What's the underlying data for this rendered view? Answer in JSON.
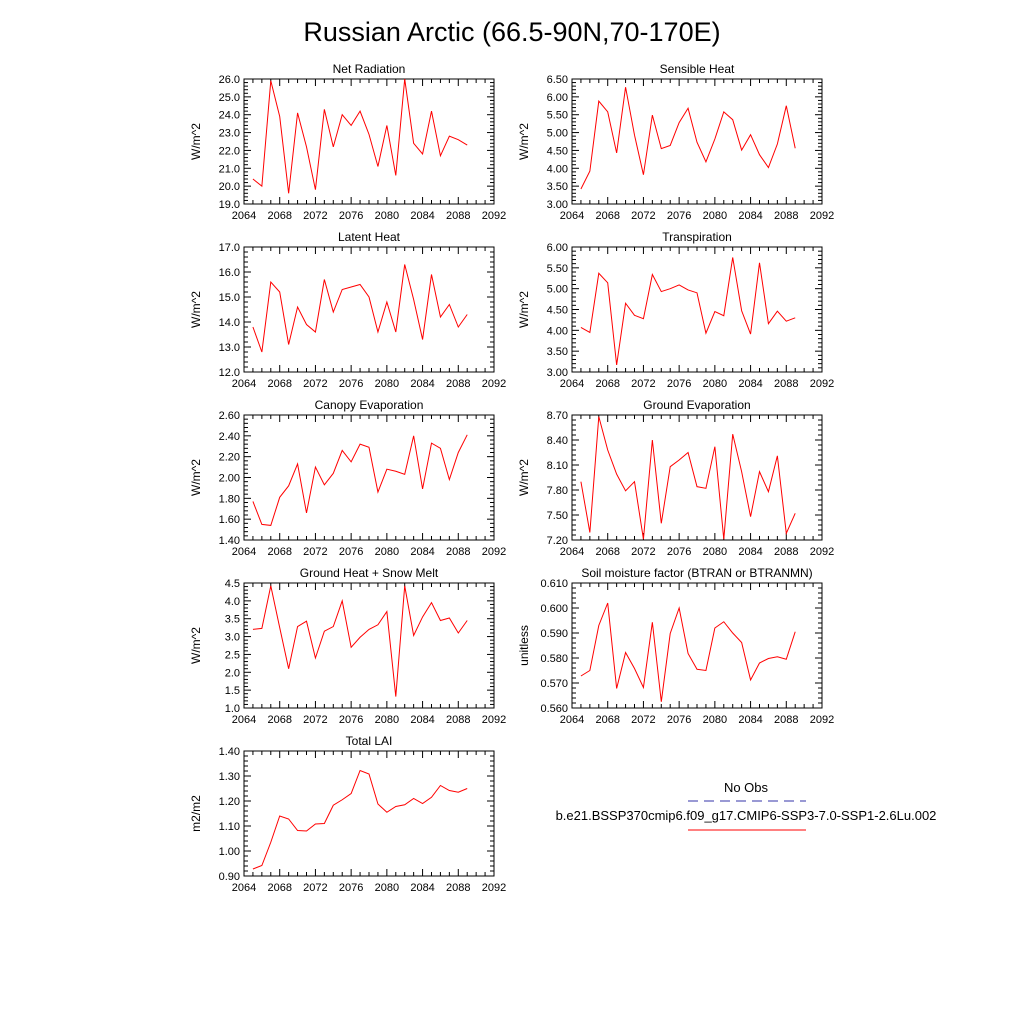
{
  "figure": {
    "title": "Russian Arctic (66.5-90N,70-170E)",
    "legend": {
      "obs_label": "No Obs",
      "obs_color": "#3333aa",
      "model_label": "b.e21.BSSP370cmip6.f09_g17.CMIP6-SSP3-7.0-SSP1-2.6Lu.002",
      "model_color": "#ff0000"
    },
    "line_color": "#ff0000"
  },
  "chart_data": [
    {
      "type": "line",
      "title": "Net Radiation",
      "ylabel": "W/m^2",
      "xlim": [
        2064,
        2092
      ],
      "ylim": [
        19.0,
        26.0
      ],
      "xticks": [
        "2064",
        "2068",
        "2072",
        "2076",
        "2080",
        "2084",
        "2088",
        "2092"
      ],
      "yticks": [
        "19.0",
        "20.0",
        "21.0",
        "22.0",
        "23.0",
        "24.0",
        "25.0",
        "26.0"
      ],
      "series": [
        {
          "x": [
            2065,
            2066,
            2067,
            2068,
            2069,
            2070,
            2071,
            2072,
            2073,
            2074,
            2075,
            2076,
            2077,
            2078,
            2079,
            2080,
            2081,
            2082,
            2083,
            2084,
            2085,
            2086,
            2087,
            2088,
            2089
          ],
          "values": [
            20.4,
            20.0,
            25.9,
            23.9,
            19.6,
            24.1,
            22.2,
            19.8,
            24.3,
            22.2,
            24.0,
            23.4,
            24.2,
            22.9,
            21.1,
            23.4,
            20.6,
            26.0,
            22.4,
            21.8,
            24.2,
            21.7,
            22.8,
            22.6,
            22.3
          ]
        }
      ]
    },
    {
      "type": "line",
      "title": "Sensible Heat",
      "ylabel": "W/m^2",
      "xlim": [
        2064,
        2092
      ],
      "ylim": [
        3.0,
        6.5
      ],
      "xticks": [
        "2064",
        "2068",
        "2072",
        "2076",
        "2080",
        "2084",
        "2088",
        "2092"
      ],
      "yticks": [
        "3.00",
        "3.50",
        "4.00",
        "4.50",
        "5.00",
        "5.50",
        "6.00",
        "6.50"
      ],
      "series": [
        {
          "x": [
            2065,
            2066,
            2067,
            2068,
            2069,
            2070,
            2071,
            2072,
            2073,
            2074,
            2075,
            2076,
            2077,
            2078,
            2079,
            2080,
            2081,
            2082,
            2083,
            2084,
            2085,
            2086,
            2087,
            2088,
            2089
          ],
          "values": [
            3.42,
            3.92,
            5.88,
            5.58,
            4.43,
            6.27,
            4.93,
            3.82,
            5.49,
            4.55,
            4.64,
            5.28,
            5.68,
            4.73,
            4.18,
            4.82,
            5.58,
            5.36,
            4.51,
            4.94,
            4.38,
            4.02,
            4.68,
            5.75,
            4.56
          ]
        }
      ]
    },
    {
      "type": "line",
      "title": "Latent Heat",
      "ylabel": "W/m^2",
      "xlim": [
        2064,
        2092
      ],
      "ylim": [
        12.0,
        17.0
      ],
      "xticks": [
        "2064",
        "2068",
        "2072",
        "2076",
        "2080",
        "2084",
        "2088",
        "2092"
      ],
      "yticks": [
        "12.0",
        "13.0",
        "14.0",
        "15.0",
        "16.0",
        "17.0"
      ],
      "series": [
        {
          "x": [
            2065,
            2066,
            2067,
            2068,
            2069,
            2070,
            2071,
            2072,
            2073,
            2074,
            2075,
            2076,
            2077,
            2078,
            2079,
            2080,
            2081,
            2082,
            2083,
            2084,
            2085,
            2086,
            2087,
            2088,
            2089
          ],
          "values": [
            13.8,
            12.8,
            15.6,
            15.2,
            13.1,
            14.6,
            13.9,
            13.6,
            15.7,
            14.4,
            15.3,
            15.4,
            15.5,
            15.0,
            13.6,
            14.8,
            13.6,
            16.3,
            14.9,
            13.3,
            15.9,
            14.2,
            14.7,
            13.8,
            14.3
          ]
        }
      ]
    },
    {
      "type": "line",
      "title": "Transpiration",
      "ylabel": "W/m^2",
      "xlim": [
        2064,
        2092
      ],
      "ylim": [
        3.0,
        6.0
      ],
      "xticks": [
        "2064",
        "2068",
        "2072",
        "2076",
        "2080",
        "2084",
        "2088",
        "2092"
      ],
      "yticks": [
        "3.00",
        "3.50",
        "4.00",
        "4.50",
        "5.00",
        "5.50",
        "6.00"
      ],
      "series": [
        {
          "x": [
            2065,
            2066,
            2067,
            2068,
            2069,
            2070,
            2071,
            2072,
            2073,
            2074,
            2075,
            2076,
            2077,
            2078,
            2079,
            2080,
            2081,
            2082,
            2083,
            2084,
            2085,
            2086,
            2087,
            2088,
            2089
          ],
          "values": [
            4.07,
            3.95,
            5.37,
            5.14,
            3.17,
            4.65,
            4.36,
            4.28,
            5.34,
            4.93,
            5.0,
            5.09,
            4.97,
            4.9,
            3.93,
            4.45,
            4.35,
            5.75,
            4.47,
            3.91,
            5.62,
            4.16,
            4.46,
            4.22,
            4.3
          ]
        }
      ]
    },
    {
      "type": "line",
      "title": "Canopy Evaporation",
      "ylabel": "W/m^2",
      "xlim": [
        2064,
        2092
      ],
      "ylim": [
        1.4,
        2.6
      ],
      "xticks": [
        "2064",
        "2068",
        "2072",
        "2076",
        "2080",
        "2084",
        "2088",
        "2092"
      ],
      "yticks": [
        "1.40",
        "1.60",
        "1.80",
        "2.00",
        "2.20",
        "2.40",
        "2.60"
      ],
      "series": [
        {
          "x": [
            2065,
            2066,
            2067,
            2068,
            2069,
            2070,
            2071,
            2072,
            2073,
            2074,
            2075,
            2076,
            2077,
            2078,
            2079,
            2080,
            2081,
            2082,
            2083,
            2084,
            2085,
            2086,
            2087,
            2088,
            2089
          ],
          "values": [
            1.77,
            1.55,
            1.54,
            1.81,
            1.92,
            2.13,
            1.66,
            2.1,
            1.93,
            2.04,
            2.26,
            2.15,
            2.32,
            2.29,
            1.86,
            2.08,
            2.06,
            2.03,
            2.4,
            1.89,
            2.33,
            2.28,
            1.98,
            2.24,
            2.41
          ]
        }
      ]
    },
    {
      "type": "line",
      "title": "Ground Evaporation",
      "ylabel": "W/m^2",
      "xlim": [
        2064,
        2092
      ],
      "ylim": [
        7.2,
        8.7
      ],
      "xticks": [
        "2064",
        "2068",
        "2072",
        "2076",
        "2080",
        "2084",
        "2088",
        "2092"
      ],
      "yticks": [
        "7.20",
        "7.50",
        "7.80",
        "8.10",
        "8.40",
        "8.70"
      ],
      "series": [
        {
          "x": [
            2065,
            2066,
            2067,
            2068,
            2069,
            2070,
            2071,
            2072,
            2073,
            2074,
            2075,
            2076,
            2077,
            2078,
            2079,
            2080,
            2081,
            2082,
            2083,
            2084,
            2085,
            2086,
            2087,
            2088,
            2089
          ],
          "values": [
            7.9,
            7.29,
            8.68,
            8.28,
            7.99,
            7.79,
            7.9,
            7.21,
            8.4,
            7.4,
            8.08,
            8.16,
            8.25,
            7.84,
            7.82,
            8.32,
            7.21,
            8.47,
            8.02,
            7.48,
            8.02,
            7.78,
            8.21,
            7.28,
            7.52
          ]
        }
      ]
    },
    {
      "type": "line",
      "title": "Ground Heat + Snow Melt",
      "ylabel": "W/m^2",
      "xlim": [
        2064,
        2092
      ],
      "ylim": [
        1.0,
        4.5
      ],
      "xticks": [
        "2064",
        "2068",
        "2072",
        "2076",
        "2080",
        "2084",
        "2088",
        "2092"
      ],
      "yticks": [
        "1.0",
        "1.5",
        "2.0",
        "2.5",
        "3.0",
        "3.5",
        "4.0",
        "4.5"
      ],
      "series": [
        {
          "x": [
            2065,
            2066,
            2067,
            2068,
            2069,
            2070,
            2071,
            2072,
            2073,
            2074,
            2075,
            2076,
            2077,
            2078,
            2079,
            2080,
            2081,
            2082,
            2083,
            2084,
            2085,
            2086,
            2087,
            2088,
            2089
          ],
          "values": [
            3.2,
            3.23,
            4.42,
            3.25,
            2.1,
            3.28,
            3.43,
            2.4,
            3.15,
            3.28,
            4.0,
            2.7,
            2.98,
            3.2,
            3.33,
            3.7,
            1.32,
            4.42,
            3.03,
            3.55,
            3.95,
            3.45,
            3.52,
            3.1,
            3.45
          ]
        }
      ]
    },
    {
      "type": "line",
      "title": "Soil moisture factor (BTRAN or BTRANMN)",
      "ylabel": "unitless",
      "xlim": [
        2064,
        2092
      ],
      "ylim": [
        0.56,
        0.61
      ],
      "xticks": [
        "2064",
        "2068",
        "2072",
        "2076",
        "2080",
        "2084",
        "2088",
        "2092"
      ],
      "yticks": [
        "0.560",
        "0.570",
        "0.580",
        "0.590",
        "0.600",
        "0.610"
      ],
      "series": [
        {
          "x": [
            2065,
            2066,
            2067,
            2068,
            2069,
            2070,
            2071,
            2072,
            2073,
            2074,
            2075,
            2076,
            2077,
            2078,
            2079,
            2080,
            2081,
            2082,
            2083,
            2084,
            2085,
            2086,
            2087,
            2088,
            2089
          ],
          "values": [
            0.5728,
            0.575,
            0.593,
            0.602,
            0.5678,
            0.5822,
            0.5758,
            0.5682,
            0.5943,
            0.5625,
            0.5898,
            0.6,
            0.5818,
            0.5755,
            0.575,
            0.592,
            0.5945,
            0.59,
            0.5862,
            0.5712,
            0.578,
            0.5798,
            0.5805,
            0.5795,
            0.5905
          ]
        }
      ]
    },
    {
      "type": "line",
      "title": "Total LAI",
      "ylabel": "m2/m2",
      "xlim": [
        2064,
        2092
      ],
      "ylim": [
        0.9,
        1.4
      ],
      "xticks": [
        "2064",
        "2068",
        "2072",
        "2076",
        "2080",
        "2084",
        "2088",
        "2092"
      ],
      "yticks": [
        "0.90",
        "1.00",
        "1.10",
        "1.20",
        "1.30",
        "1.40"
      ],
      "series": [
        {
          "x": [
            2065,
            2066,
            2067,
            2068,
            2069,
            2070,
            2071,
            2072,
            2073,
            2074,
            2075,
            2076,
            2077,
            2078,
            2079,
            2080,
            2081,
            2082,
            2083,
            2084,
            2085,
            2086,
            2087,
            2088,
            2089
          ],
          "values": [
            0.928,
            0.942,
            1.035,
            1.14,
            1.128,
            1.082,
            1.08,
            1.108,
            1.11,
            1.183,
            1.205,
            1.23,
            1.322,
            1.308,
            1.188,
            1.155,
            1.178,
            1.185,
            1.21,
            1.19,
            1.215,
            1.262,
            1.242,
            1.235,
            1.25
          ]
        }
      ]
    }
  ]
}
